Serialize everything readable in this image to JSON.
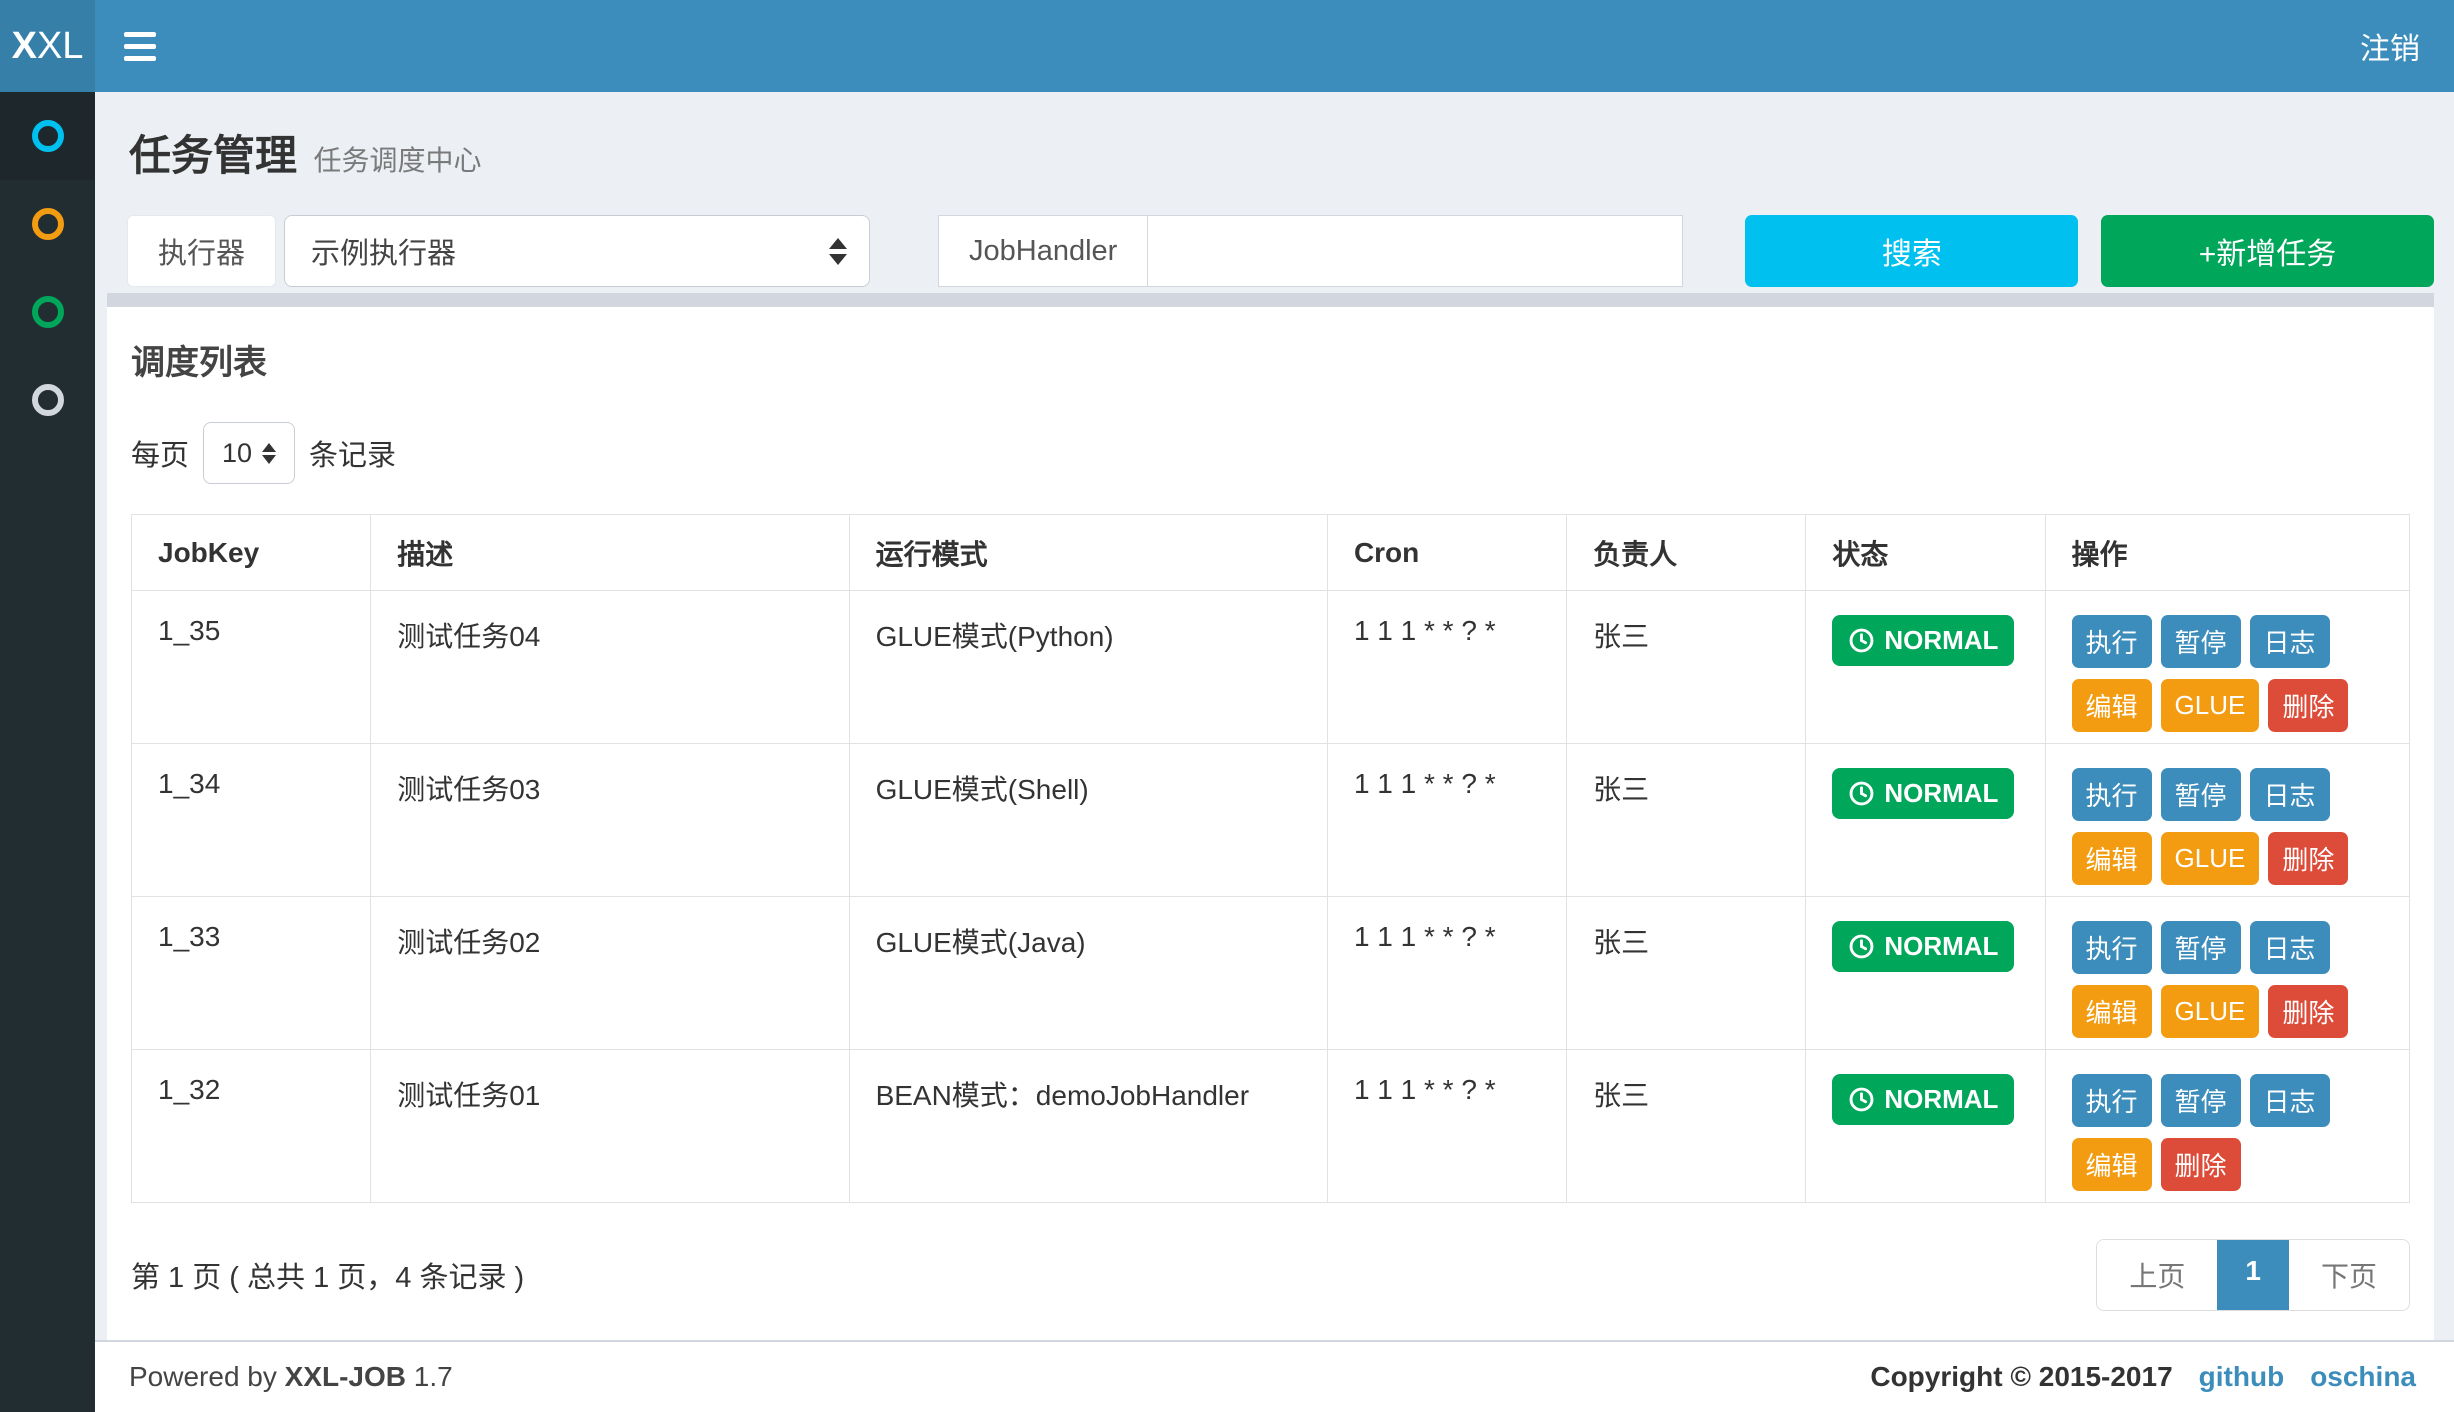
{
  "navbar": {
    "logo_bold": "X",
    "logo_light": "XL",
    "logout_label": "注销"
  },
  "sidebar": {
    "items": [
      {
        "name": "job-manage",
        "color": "#00c0ef",
        "active": true
      },
      {
        "name": "job-log",
        "color": "#f39c12",
        "active": false
      },
      {
        "name": "registry",
        "color": "#00a65a",
        "active": false
      },
      {
        "name": "help",
        "color": "#d2d6de",
        "active": false
      }
    ]
  },
  "page_header": {
    "title": "任务管理",
    "subtitle": "任务调度中心"
  },
  "filters": {
    "executor_label": "执行器",
    "executor_value": "示例执行器",
    "jobhandler_label": "JobHandler",
    "jobhandler_value": "",
    "search_label": "搜索",
    "add_label": "+新增任务"
  },
  "panel": {
    "title": "调度列表",
    "page_size_prefix": "每页",
    "page_size_value": "10",
    "page_size_suffix": "条记录"
  },
  "table": {
    "columns": [
      "JobKey",
      "描述",
      "运行模式",
      "Cron",
      "负责人",
      "状态",
      "操作"
    ],
    "rows": [
      {
        "job_key": "1_35",
        "desc": "测试任务04",
        "mode": "GLUE模式(Python)",
        "cron": "1 1 1 * * ? *",
        "owner": "张三",
        "status": "NORMAL",
        "actions": [
          {
            "name": "execute",
            "label": "执行",
            "color": "blue"
          },
          {
            "name": "pause",
            "label": "暂停",
            "color": "blue"
          },
          {
            "name": "log",
            "label": "日志",
            "color": "blue"
          },
          {
            "name": "edit",
            "label": "编辑",
            "color": "orange"
          },
          {
            "name": "glue",
            "label": "GLUE",
            "color": "orange"
          },
          {
            "name": "delete",
            "label": "删除",
            "color": "red"
          }
        ]
      },
      {
        "job_key": "1_34",
        "desc": "测试任务03",
        "mode": "GLUE模式(Shell)",
        "cron": "1 1 1 * * ? *",
        "owner": "张三",
        "status": "NORMAL",
        "actions": [
          {
            "name": "execute",
            "label": "执行",
            "color": "blue"
          },
          {
            "name": "pause",
            "label": "暂停",
            "color": "blue"
          },
          {
            "name": "log",
            "label": "日志",
            "color": "blue"
          },
          {
            "name": "edit",
            "label": "编辑",
            "color": "orange"
          },
          {
            "name": "glue",
            "label": "GLUE",
            "color": "orange"
          },
          {
            "name": "delete",
            "label": "删除",
            "color": "red"
          }
        ]
      },
      {
        "job_key": "1_33",
        "desc": "测试任务02",
        "mode": "GLUE模式(Java)",
        "cron": "1 1 1 * * ? *",
        "owner": "张三",
        "status": "NORMAL",
        "actions": [
          {
            "name": "execute",
            "label": "执行",
            "color": "blue"
          },
          {
            "name": "pause",
            "label": "暂停",
            "color": "blue"
          },
          {
            "name": "log",
            "label": "日志",
            "color": "blue"
          },
          {
            "name": "edit",
            "label": "编辑",
            "color": "orange"
          },
          {
            "name": "glue",
            "label": "GLUE",
            "color": "orange"
          },
          {
            "name": "delete",
            "label": "删除",
            "color": "red"
          }
        ]
      },
      {
        "job_key": "1_32",
        "desc": "测试任务01",
        "mode": "BEAN模式：demoJobHandler",
        "cron": "1 1 1 * * ? *",
        "owner": "张三",
        "status": "NORMAL",
        "actions": [
          {
            "name": "execute",
            "label": "执行",
            "color": "blue"
          },
          {
            "name": "pause",
            "label": "暂停",
            "color": "blue"
          },
          {
            "name": "log",
            "label": "日志",
            "color": "blue"
          },
          {
            "name": "edit",
            "label": "编辑",
            "color": "orange"
          },
          {
            "name": "delete",
            "label": "删除",
            "color": "red"
          }
        ]
      }
    ]
  },
  "pagination": {
    "info": "第 1 页 ( 总共 1 页，4 条记录 )",
    "prev_label": "上页",
    "current_page": "1",
    "next_label": "下页"
  },
  "footer": {
    "powered_prefix": "Powered by",
    "brand": "XXL-JOB",
    "version": "1.7",
    "copyright": "Copyright © 2015-2017",
    "links": [
      "github",
      "oschina"
    ]
  },
  "colors": {
    "navbar": "#3c8dbc",
    "logo_bg": "#367fa9",
    "sidebar_bg": "#222d32",
    "page_bg": "#ecf0f5",
    "blue": "#3c8dbc",
    "cyan": "#00c0ef",
    "green": "#00a65a",
    "orange": "#f39c12",
    "red": "#dd4b39"
  }
}
